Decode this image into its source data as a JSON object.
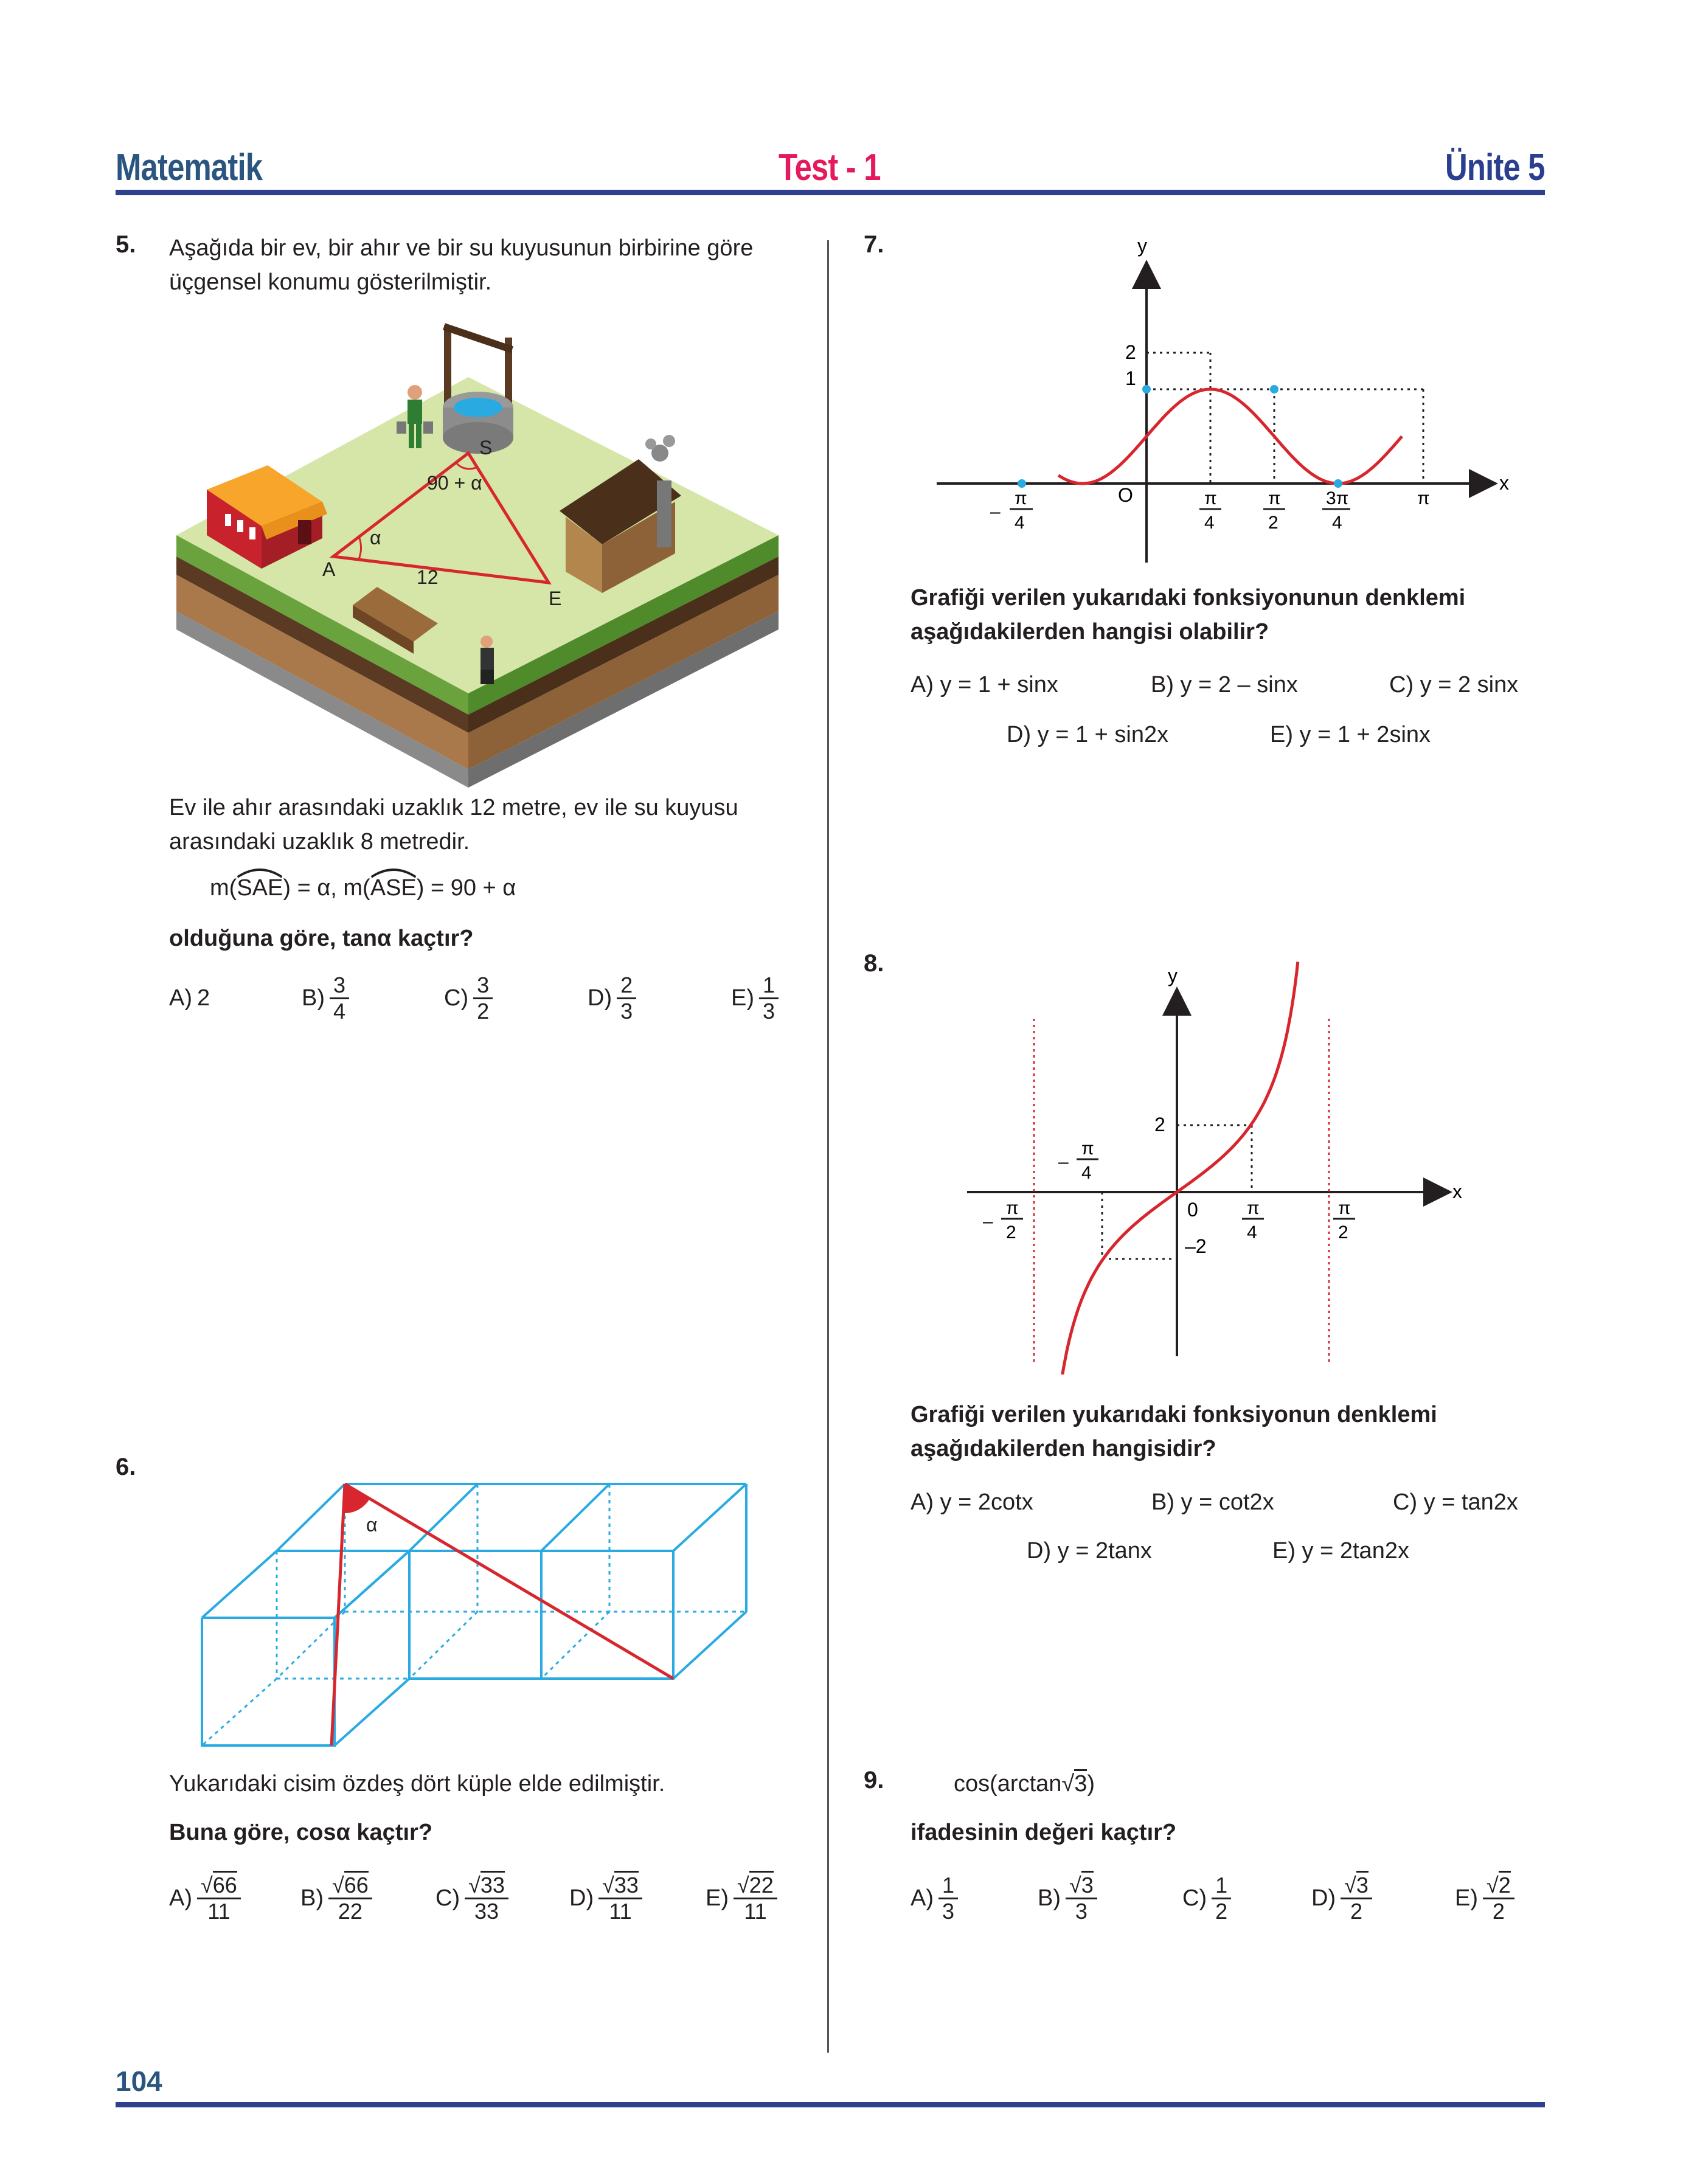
{
  "header": {
    "subject": "Matematik",
    "test": "Test - 1",
    "unit": "Ünite 5"
  },
  "page_number": "104",
  "q5": {
    "number": "5.",
    "intro": [
      "Aşağıda bir ev, bir ahır ve bir su kuyusunun birbirine göre",
      "üçgensel konumu gösterilmiştir."
    ],
    "fig": {
      "S": "S",
      "A": "A",
      "E": "E",
      "alpha": "α",
      "angleS": "90 + α",
      "side": "12"
    },
    "info": [
      "Ev ile ahır arasındaki uzaklık 12 metre, ev ile su kuyusu",
      "arasındaki uzaklık 8 metredir."
    ],
    "m1": "m(",
    "arc1": "SAE",
    "m1b": ") = α, m(",
    "arc2": "ASE",
    "m2b": ") = 90 + α",
    "question": "olduğuna göre, tanα kaçtır?",
    "options": {
      "A": {
        "label": "A)",
        "val": "2"
      },
      "B": {
        "label": "B)",
        "n": "3",
        "d": "4"
      },
      "C": {
        "label": "C)",
        "n": "3",
        "d": "2"
      },
      "D": {
        "label": "D)",
        "n": "2",
        "d": "3"
      },
      "E": {
        "label": "E)",
        "n": "1",
        "d": "3"
      }
    }
  },
  "q6": {
    "number": "6.",
    "alpha": "α",
    "statement": "Yukarıdaki cisim özdeş dört küple elde edilmiştir.",
    "question": "Buna göre, cosα kaçtır?",
    "options": {
      "A": {
        "label": "A)",
        "n": "66",
        "d": "11"
      },
      "B": {
        "label": "B)",
        "n": "66",
        "d": "22"
      },
      "C": {
        "label": "C)",
        "n": "33",
        "d": "33"
      },
      "D": {
        "label": "D)",
        "n": "33",
        "d": "11"
      },
      "E": {
        "label": "E)",
        "n": "22",
        "d": "11"
      }
    }
  },
  "q7": {
    "number": "7.",
    "axis": {
      "y": "y",
      "x": "x",
      "o": "O",
      "y2": "2",
      "y1": "1"
    },
    "ticks": {
      "minus": "–",
      "pi": "π",
      "four": "4",
      "two": "2",
      "three_pi": "3π"
    },
    "question": [
      "Grafiği verilen yukarıdaki fonksiyonunun denklemi",
      "aşağıdakilerden hangisi olabilir?"
    ],
    "options": {
      "A": "A) y = 1 + sinx",
      "B": "B) y = 2 – sinx",
      "C": "C) y = 2 sinx",
      "D": "D) y = 1 + sin2x",
      "E": "E) y = 1 + 2sinx"
    }
  },
  "q8": {
    "number": "8.",
    "axis": {
      "y": "y",
      "x": "x",
      "zero": "0",
      "y2": "2",
      "ym2": "–2"
    },
    "ticks": {
      "minus": "–",
      "pi": "π",
      "four": "4",
      "two": "2"
    },
    "question": [
      "Grafiği verilen yukarıdaki fonksiyonun denklemi",
      "aşağıdakilerden hangisidir?"
    ],
    "options": {
      "A": "A) y = 2cotx",
      "B": "B) y = cot2x",
      "C": "C) y = tan2x",
      "D": "D) y = 2tanx",
      "E": "E) y = 2tan2x"
    }
  },
  "q9": {
    "number": "9.",
    "expr_pre": "cos(arctan",
    "expr_rad": "3",
    "expr_post": ")",
    "question": "ifadesinin değeri kaçtır?",
    "options": {
      "A": {
        "label": "A)",
        "n": "1",
        "d": "3"
      },
      "B": {
        "label": "B)",
        "n": "3",
        "d": "3"
      },
      "C": {
        "label": "C)",
        "n": "1",
        "d": "2"
      },
      "D": {
        "label": "D)",
        "n": "3",
        "d": "2"
      },
      "E": {
        "label": "E)",
        "n": "2",
        "d": "2"
      }
    }
  },
  "colors": {
    "blue": "#2e3f8e",
    "pink": "#e51a5d",
    "red": "#d7262d",
    "cyan": "#29abe2"
  }
}
